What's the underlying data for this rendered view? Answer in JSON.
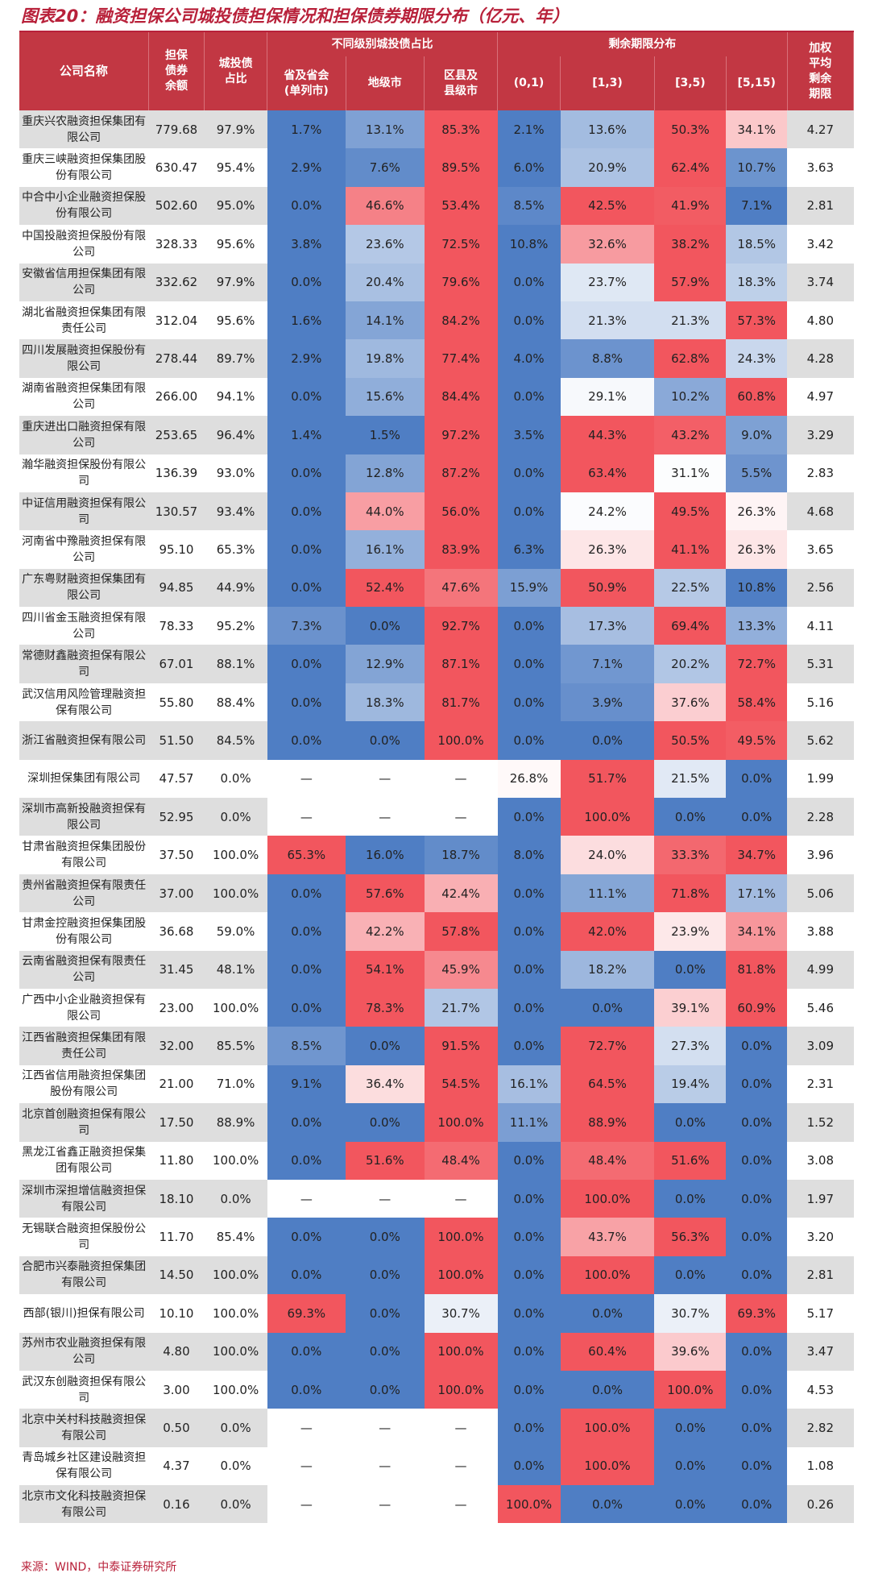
{
  "title": "图表20：融资担保公司城投债担保情况和担保债券期限分布（亿元、年）",
  "source": "来源：WIND，中泰证券研究所",
  "headers": {
    "company": "公司名称",
    "balance": "担保\n债券\n余额",
    "ratio": "城投债\n占比",
    "level_group": "不同级别城投债占比",
    "province": "省及省会\n(单列市)",
    "city": "地级市",
    "county": "区县及\n县级市",
    "term_group": "剩余期限分布",
    "t01": "(0,1)",
    "t13": "[1,3)",
    "t35": "[3,5)",
    "t515": "[5,15)",
    "avg": "加权\n平均\n剩余\n期限"
  },
  "colors": {
    "header": "#c23743",
    "title": "#b8213a",
    "scale_low": "#4f7ec4",
    "scale_mid": "#ffffff",
    "scale_high": "#f2565e",
    "stripe": "#dedede"
  },
  "rows": [
    {
      "name": "重庆兴农融资担保集团有限公司",
      "balance": "779.68",
      "ratio": "97.9%",
      "province": "1.7%",
      "city": "13.1%",
      "county": "85.3%",
      "t01": "2.1%",
      "t13": "13.6%",
      "t35": "50.3%",
      "t515": "34.1%",
      "avg": "4.27"
    },
    {
      "name": "重庆三峡融资担保集团股份有限公司",
      "balance": "630.47",
      "ratio": "95.4%",
      "province": "2.9%",
      "city": "7.6%",
      "county": "89.5%",
      "t01": "6.0%",
      "t13": "20.9%",
      "t35": "62.4%",
      "t515": "10.7%",
      "avg": "3.63"
    },
    {
      "name": "中合中小企业融资担保股份有限公司",
      "balance": "502.60",
      "ratio": "95.0%",
      "province": "0.0%",
      "city": "46.6%",
      "county": "53.4%",
      "t01": "8.5%",
      "t13": "42.5%",
      "t35": "41.9%",
      "t515": "7.1%",
      "avg": "2.81"
    },
    {
      "name": "中国投融资担保股份有限公司",
      "balance": "328.33",
      "ratio": "95.6%",
      "province": "3.8%",
      "city": "23.6%",
      "county": "72.5%",
      "t01": "10.8%",
      "t13": "32.6%",
      "t35": "38.2%",
      "t515": "18.5%",
      "avg": "3.42"
    },
    {
      "name": "安徽省信用担保集团有限公司",
      "balance": "332.62",
      "ratio": "97.9%",
      "province": "0.0%",
      "city": "20.4%",
      "county": "79.6%",
      "t01": "0.0%",
      "t13": "23.7%",
      "t35": "57.9%",
      "t515": "18.3%",
      "avg": "3.74"
    },
    {
      "name": "湖北省融资担保集团有限责任公司",
      "balance": "312.04",
      "ratio": "95.6%",
      "province": "1.6%",
      "city": "14.1%",
      "county": "84.2%",
      "t01": "0.0%",
      "t13": "21.3%",
      "t35": "21.3%",
      "t515": "57.3%",
      "avg": "4.80"
    },
    {
      "name": "四川发展融资担保股份有限公司",
      "balance": "278.44",
      "ratio": "89.7%",
      "province": "2.9%",
      "city": "19.8%",
      "county": "77.4%",
      "t01": "4.0%",
      "t13": "8.8%",
      "t35": "62.8%",
      "t515": "24.3%",
      "avg": "4.28"
    },
    {
      "name": "湖南省融资担保集团有限公司",
      "balance": "266.00",
      "ratio": "94.1%",
      "province": "0.0%",
      "city": "15.6%",
      "county": "84.4%",
      "t01": "0.0%",
      "t13": "29.1%",
      "t35": "10.2%",
      "t515": "60.8%",
      "avg": "4.97"
    },
    {
      "name": "重庆进出口融资担保有限公司",
      "balance": "253.65",
      "ratio": "96.4%",
      "province": "1.4%",
      "city": "1.5%",
      "county": "97.2%",
      "t01": "3.5%",
      "t13": "44.3%",
      "t35": "43.2%",
      "t515": "9.0%",
      "avg": "3.29"
    },
    {
      "name": "瀚华融资担保股份有限公司",
      "balance": "136.39",
      "ratio": "93.0%",
      "province": "0.0%",
      "city": "12.8%",
      "county": "87.2%",
      "t01": "0.0%",
      "t13": "63.4%",
      "t35": "31.1%",
      "t515": "5.5%",
      "avg": "2.83"
    },
    {
      "name": "中证信用融资担保有限公司",
      "balance": "130.57",
      "ratio": "93.4%",
      "province": "0.0%",
      "city": "44.0%",
      "county": "56.0%",
      "t01": "0.0%",
      "t13": "24.2%",
      "t35": "49.5%",
      "t515": "26.3%",
      "avg": "4.68"
    },
    {
      "name": "河南省中豫融资担保有限公司",
      "balance": "95.10",
      "ratio": "65.3%",
      "province": "0.0%",
      "city": "16.1%",
      "county": "83.9%",
      "t01": "6.3%",
      "t13": "26.3%",
      "t35": "41.1%",
      "t515": "26.3%",
      "avg": "3.65"
    },
    {
      "name": "广东粤财融资担保集团有限公司",
      "balance": "94.85",
      "ratio": "44.9%",
      "province": "0.0%",
      "city": "52.4%",
      "county": "47.6%",
      "t01": "15.9%",
      "t13": "50.9%",
      "t35": "22.5%",
      "t515": "10.8%",
      "avg": "2.56"
    },
    {
      "name": "四川省金玉融资担保有限公司",
      "balance": "78.33",
      "ratio": "95.2%",
      "province": "7.3%",
      "city": "0.0%",
      "county": "92.7%",
      "t01": "0.0%",
      "t13": "17.3%",
      "t35": "69.4%",
      "t515": "13.3%",
      "avg": "4.11"
    },
    {
      "name": "常德财鑫融资担保有限公司",
      "balance": "67.01",
      "ratio": "88.1%",
      "province": "0.0%",
      "city": "12.9%",
      "county": "87.1%",
      "t01": "0.0%",
      "t13": "7.1%",
      "t35": "20.2%",
      "t515": "72.7%",
      "avg": "5.31"
    },
    {
      "name": "武汉信用风险管理融资担保有限公司",
      "balance": "55.80",
      "ratio": "88.4%",
      "province": "0.0%",
      "city": "18.3%",
      "county": "81.7%",
      "t01": "0.0%",
      "t13": "3.9%",
      "t35": "37.6%",
      "t515": "58.4%",
      "avg": "5.16"
    },
    {
      "name": "浙江省融资担保有限公司",
      "balance": "51.50",
      "ratio": "84.5%",
      "province": "0.0%",
      "city": "0.0%",
      "county": "100.0%",
      "t01": "0.0%",
      "t13": "0.0%",
      "t35": "50.5%",
      "t515": "49.5%",
      "avg": "5.62"
    },
    {
      "name": "深圳担保集团有限公司",
      "balance": "47.57",
      "ratio": "0.0%",
      "province": "—",
      "city": "—",
      "county": "—",
      "t01": "26.8%",
      "t13": "51.7%",
      "t35": "21.5%",
      "t515": "0.0%",
      "avg": "1.99"
    },
    {
      "name": "深圳市高新投融资担保有限公司",
      "balance": "52.95",
      "ratio": "0.0%",
      "province": "—",
      "city": "—",
      "county": "—",
      "t01": "0.0%",
      "t13": "100.0%",
      "t35": "0.0%",
      "t515": "0.0%",
      "avg": "2.28"
    },
    {
      "name": "甘肃省融资担保集团股份有限公司",
      "balance": "37.50",
      "ratio": "100.0%",
      "province": "65.3%",
      "city": "16.0%",
      "county": "18.7%",
      "t01": "8.0%",
      "t13": "24.0%",
      "t35": "33.3%",
      "t515": "34.7%",
      "avg": "3.96"
    },
    {
      "name": "贵州省融资担保有限责任公司",
      "balance": "37.00",
      "ratio": "100.0%",
      "province": "0.0%",
      "city": "57.6%",
      "county": "42.4%",
      "t01": "0.0%",
      "t13": "11.1%",
      "t35": "71.8%",
      "t515": "17.1%",
      "avg": "5.06"
    },
    {
      "name": "甘肃金控融资担保集团股份有限公司",
      "balance": "36.68",
      "ratio": "59.0%",
      "province": "0.0%",
      "city": "42.2%",
      "county": "57.8%",
      "t01": "0.0%",
      "t13": "42.0%",
      "t35": "23.9%",
      "t515": "34.1%",
      "avg": "3.88"
    },
    {
      "name": "云南省融资担保有限责任公司",
      "balance": "31.45",
      "ratio": "48.1%",
      "province": "0.0%",
      "city": "54.1%",
      "county": "45.9%",
      "t01": "0.0%",
      "t13": "18.2%",
      "t35": "0.0%",
      "t515": "81.8%",
      "avg": "4.99"
    },
    {
      "name": "广西中小企业融资担保有限公司",
      "balance": "23.00",
      "ratio": "100.0%",
      "province": "0.0%",
      "city": "78.3%",
      "county": "21.7%",
      "t01": "0.0%",
      "t13": "0.0%",
      "t35": "39.1%",
      "t515": "60.9%",
      "avg": "5.46"
    },
    {
      "name": "江西省融资担保集团有限责任公司",
      "balance": "32.00",
      "ratio": "85.5%",
      "province": "8.5%",
      "city": "0.0%",
      "county": "91.5%",
      "t01": "0.0%",
      "t13": "72.7%",
      "t35": "27.3%",
      "t515": "0.0%",
      "avg": "3.09"
    },
    {
      "name": "江西省信用融资担保集团股份有限公司",
      "balance": "21.00",
      "ratio": "71.0%",
      "province": "9.1%",
      "city": "36.4%",
      "county": "54.5%",
      "t01": "16.1%",
      "t13": "64.5%",
      "t35": "19.4%",
      "t515": "0.0%",
      "avg": "2.31"
    },
    {
      "name": "北京首创融资担保有限公司",
      "balance": "17.50",
      "ratio": "88.9%",
      "province": "0.0%",
      "city": "0.0%",
      "county": "100.0%",
      "t01": "11.1%",
      "t13": "88.9%",
      "t35": "0.0%",
      "t515": "0.0%",
      "avg": "1.52"
    },
    {
      "name": "黑龙江省鑫正融资担保集团有限公司",
      "balance": "11.80",
      "ratio": "100.0%",
      "province": "0.0%",
      "city": "51.6%",
      "county": "48.4%",
      "t01": "0.0%",
      "t13": "48.4%",
      "t35": "51.6%",
      "t515": "0.0%",
      "avg": "3.08"
    },
    {
      "name": "深圳市深担增信融资担保有限公司",
      "balance": "18.10",
      "ratio": "0.0%",
      "province": "—",
      "city": "—",
      "county": "—",
      "t01": "0.0%",
      "t13": "100.0%",
      "t35": "0.0%",
      "t515": "0.0%",
      "avg": "1.97"
    },
    {
      "name": "无锡联合融资担保股份公司",
      "balance": "11.70",
      "ratio": "85.4%",
      "province": "0.0%",
      "city": "0.0%",
      "county": "100.0%",
      "t01": "0.0%",
      "t13": "43.7%",
      "t35": "56.3%",
      "t515": "0.0%",
      "avg": "3.20"
    },
    {
      "name": "合肥市兴泰融资担保集团有限公司",
      "balance": "14.50",
      "ratio": "100.0%",
      "province": "0.0%",
      "city": "0.0%",
      "county": "100.0%",
      "t01": "0.0%",
      "t13": "100.0%",
      "t35": "0.0%",
      "t515": "0.0%",
      "avg": "2.81"
    },
    {
      "name": "西部(银川)担保有限公司",
      "balance": "10.10",
      "ratio": "100.0%",
      "province": "69.3%",
      "city": "0.0%",
      "county": "30.7%",
      "t01": "0.0%",
      "t13": "0.0%",
      "t35": "30.7%",
      "t515": "69.3%",
      "avg": "5.17"
    },
    {
      "name": "苏州市农业融资担保有限公司",
      "balance": "4.80",
      "ratio": "100.0%",
      "province": "0.0%",
      "city": "0.0%",
      "county": "100.0%",
      "t01": "0.0%",
      "t13": "60.4%",
      "t35": "39.6%",
      "t515": "0.0%",
      "avg": "3.47"
    },
    {
      "name": "武汉东创融资担保有限公司",
      "balance": "3.00",
      "ratio": "100.0%",
      "province": "0.0%",
      "city": "0.0%",
      "county": "100.0%",
      "t01": "0.0%",
      "t13": "0.0%",
      "t35": "100.0%",
      "t515": "0.0%",
      "avg": "4.53"
    },
    {
      "name": "北京中关村科技融资担保有限公司",
      "balance": "0.50",
      "ratio": "0.0%",
      "province": "—",
      "city": "—",
      "county": "—",
      "t01": "0.0%",
      "t13": "100.0%",
      "t35": "0.0%",
      "t515": "0.0%",
      "avg": "2.82"
    },
    {
      "name": "青岛城乡社区建设融资担保有限公司",
      "balance": "4.37",
      "ratio": "0.0%",
      "province": "—",
      "city": "—",
      "county": "—",
      "t01": "0.0%",
      "t13": "100.0%",
      "t35": "0.0%",
      "t515": "0.0%",
      "avg": "1.08"
    },
    {
      "name": "北京市文化科技融资担保有限公司",
      "balance": "0.16",
      "ratio": "0.0%",
      "province": "—",
      "city": "—",
      "county": "—",
      "t01": "100.0%",
      "t13": "0.0%",
      "t35": "0.0%",
      "t515": "0.0%",
      "avg": "0.26"
    }
  ]
}
